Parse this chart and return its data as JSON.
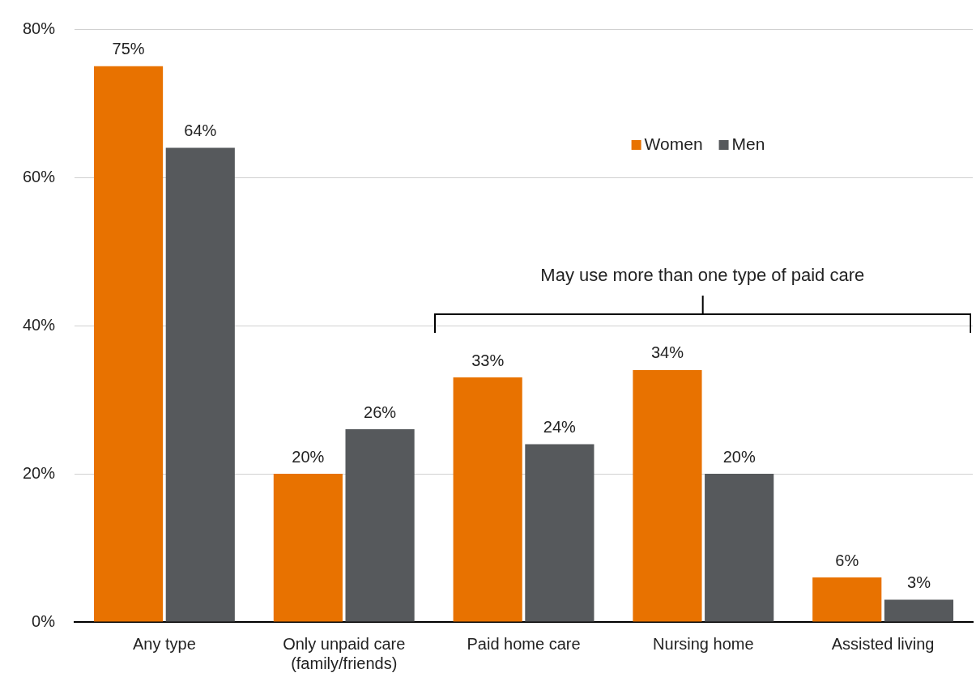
{
  "chart_data": {
    "type": "bar",
    "categories": [
      "Any type",
      "Only unpaid care\n(family/friends)",
      "Paid home care",
      "Nursing home",
      "Assisted living"
    ],
    "series": [
      {
        "name": "Women",
        "color": "#e87200",
        "values": [
          75,
          20,
          33,
          34,
          6
        ],
        "value_labels": [
          "75%",
          "20%",
          "33%",
          "34%",
          "6%"
        ]
      },
      {
        "name": "Men",
        "color": "#56595c",
        "values": [
          64,
          26,
          24,
          20,
          3
        ],
        "value_labels": [
          "64%",
          "26%",
          "24%",
          "20%",
          "3%"
        ]
      }
    ],
    "ylim": [
      0,
      80
    ],
    "yticks": [
      {
        "value": 0,
        "label": "0%"
      },
      {
        "value": 20,
        "label": "20%"
      },
      {
        "value": 40,
        "label": "40%"
      },
      {
        "value": 60,
        "label": "60%"
      },
      {
        "value": 80,
        "label": "80%"
      }
    ],
    "grid": "y",
    "legend": "top right",
    "annotations": [
      "May use more than one type of paid care"
    ]
  }
}
